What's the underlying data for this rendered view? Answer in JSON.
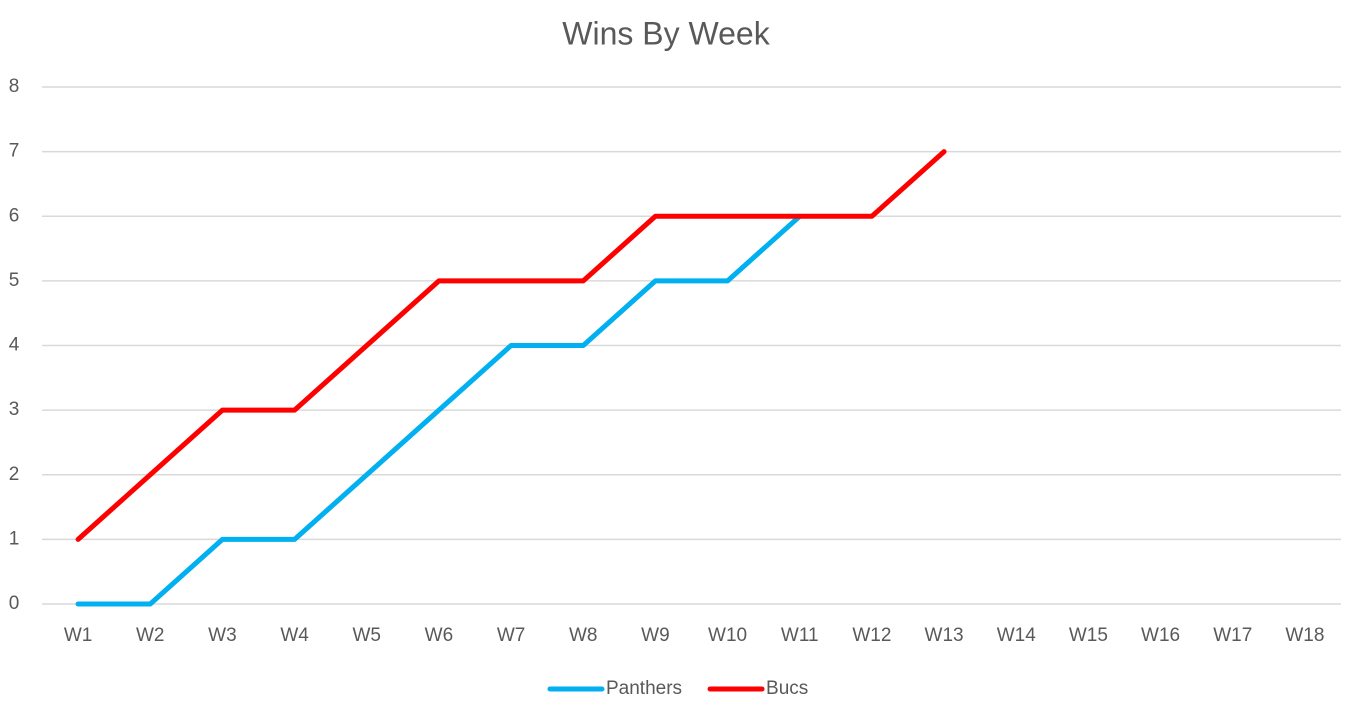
{
  "chart_data": {
    "type": "line",
    "title": "Wins By Week",
    "categories": [
      "W1",
      "W2",
      "W3",
      "W4",
      "W5",
      "W6",
      "W7",
      "W8",
      "W9",
      "W10",
      "W11",
      "W12",
      "W13",
      "W14",
      "W15",
      "W16",
      "W17",
      "W18"
    ],
    "series": [
      {
        "name": "Panthers",
        "color": "#00b0f0",
        "values": [
          0,
          0,
          1,
          1,
          2,
          3,
          4,
          4,
          5,
          5,
          6,
          null,
          null,
          null,
          null,
          null,
          null,
          null
        ]
      },
      {
        "name": "Bucs",
        "color": "#ff0000",
        "values": [
          1,
          2,
          3,
          3,
          4,
          5,
          5,
          5,
          6,
          6,
          6,
          6,
          7,
          null,
          null,
          null,
          null,
          null
        ]
      }
    ],
    "ylim": [
      0,
      8
    ],
    "yticks": [
      0,
      1,
      2,
      3,
      4,
      5,
      6,
      7,
      8
    ],
    "grid": true,
    "legend": "bottom"
  }
}
